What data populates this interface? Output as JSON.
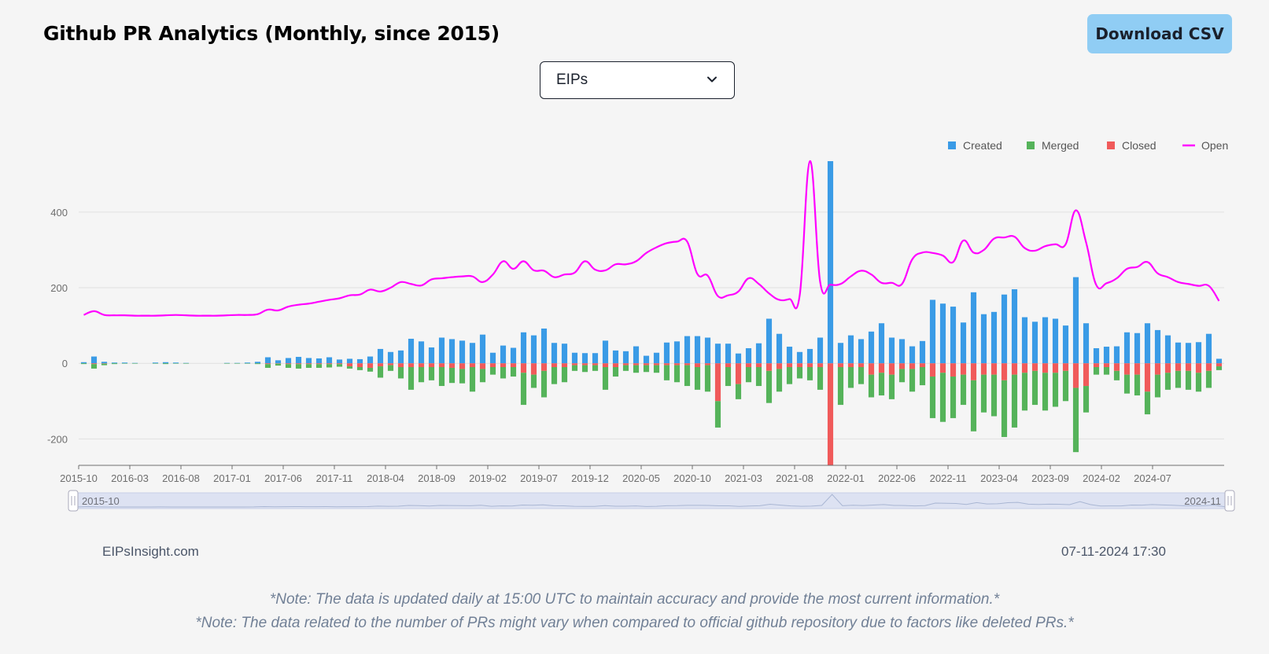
{
  "header": {
    "title": "Github PR Analytics (Monthly, since 2015)",
    "download_label": "Download CSV"
  },
  "selector": {
    "selected": "EIPs"
  },
  "footer": {
    "source": "EIPsInsight.com",
    "timestamp": "07-11-2024 17:30",
    "note1": "*Note: The data is updated daily at 15:00 UTC to maintain accuracy and provide the most current information.*",
    "note2": "*Note: The data related to the number of PRs might vary when compared to official github repository due to factors like deleted PRs.*"
  },
  "chart_data": {
    "type": "bar",
    "title": "",
    "xlabel": "",
    "ylabel": "",
    "ylim": [
      -270,
      535
    ],
    "yticks": [
      400,
      200,
      0,
      -200
    ],
    "legend": [
      "Created",
      "Merged",
      "Closed",
      "Open"
    ],
    "legend_position": "top-right",
    "colors": {
      "Created": "#3a9be6",
      "Merged": "#55b35a",
      "Closed": "#f05a5a",
      "Open": "#ff00ff"
    },
    "x_tick_labels": [
      "2015-10",
      "2016-03",
      "2016-08",
      "2017-01",
      "2017-06",
      "2017-11",
      "2018-04",
      "2018-09",
      "2019-02",
      "2019-07",
      "2019-12",
      "2020-05",
      "2020-10",
      "2021-03",
      "2021-08",
      "2022-01",
      "2022-06",
      "2022-11",
      "2023-04",
      "2023-09",
      "2024-02",
      "2024-07"
    ],
    "start_month": "2015-10",
    "range_slider": {
      "start_label": "2015-10",
      "end_label": "2024-11"
    },
    "series": [
      {
        "name": "Created",
        "values": [
          3,
          18,
          4,
          2,
          2,
          1,
          0,
          2,
          3,
          2,
          1,
          0,
          0,
          0,
          1,
          1,
          2,
          4,
          16,
          8,
          14,
          17,
          14,
          13,
          16,
          10,
          12,
          11,
          18,
          38,
          30,
          34,
          65,
          58,
          42,
          68,
          64,
          60,
          54,
          76,
          28,
          47,
          41,
          82,
          74,
          92,
          54,
          52,
          28,
          27,
          27,
          60,
          34,
          32,
          45,
          20,
          28,
          55,
          58,
          72,
          72,
          68,
          52,
          52,
          26,
          40,
          53,
          118,
          78,
          44,
          30,
          38,
          68,
          535,
          54,
          74,
          64,
          84,
          106,
          68,
          64,
          45,
          59,
          168,
          158,
          150,
          108,
          188,
          130,
          136,
          182,
          196,
          122,
          110,
          122,
          118,
          100,
          228,
          106,
          40,
          44,
          45,
          82,
          80,
          106,
          88,
          74,
          55,
          54,
          56,
          78,
          12
        ]
      },
      {
        "name": "Merged",
        "values": [
          2,
          12,
          4,
          2,
          1,
          1,
          0,
          1,
          2,
          1,
          1,
          0,
          0,
          0,
          1,
          1,
          1,
          2,
          10,
          5,
          10,
          12,
          10,
          10,
          9,
          7,
          6,
          8,
          10,
          30,
          15,
          30,
          60,
          40,
          35,
          50,
          40,
          38,
          65,
          35,
          20,
          30,
          25,
          85,
          35,
          70,
          45,
          40,
          15,
          18,
          15,
          60,
          25,
          15,
          20,
          18,
          20,
          40,
          45,
          55,
          60,
          70,
          70,
          50,
          40,
          40,
          50,
          85,
          60,
          45,
          30,
          35,
          60,
          0,
          100,
          55,
          45,
          60,
          60,
          65,
          35,
          60,
          48,
          110,
          130,
          110,
          80,
          135,
          100,
          110,
          150,
          140,
          100,
          90,
          100,
          90,
          80,
          170,
          70,
          20,
          20,
          25,
          50,
          55,
          60,
          60,
          45,
          45,
          50,
          50,
          45,
          10
        ]
      },
      {
        "name": "Closed",
        "values": [
          0,
          2,
          1,
          0,
          0,
          0,
          0,
          0,
          0,
          0,
          0,
          0,
          0,
          0,
          0,
          0,
          0,
          0,
          2,
          1,
          2,
          2,
          2,
          2,
          2,
          2,
          8,
          10,
          12,
          8,
          5,
          10,
          10,
          10,
          10,
          10,
          12,
          15,
          10,
          15,
          10,
          10,
          10,
          25,
          30,
          20,
          10,
          10,
          5,
          5,
          5,
          10,
          10,
          5,
          5,
          5,
          5,
          5,
          5,
          5,
          10,
          5,
          100,
          10,
          55,
          10,
          10,
          20,
          15,
          10,
          10,
          10,
          10,
          270,
          10,
          10,
          10,
          30,
          25,
          30,
          15,
          15,
          10,
          35,
          25,
          35,
          30,
          45,
          30,
          30,
          45,
          30,
          25,
          20,
          25,
          25,
          20,
          65,
          60,
          10,
          10,
          20,
          30,
          30,
          75,
          30,
          25,
          20,
          20,
          25,
          20,
          8
        ]
      },
      {
        "name": "Open",
        "values": [
          128,
          138,
          128,
          127,
          127,
          126,
          126,
          126,
          127,
          128,
          127,
          126,
          126,
          126,
          127,
          128,
          128,
          130,
          142,
          140,
          150,
          155,
          158,
          163,
          168,
          172,
          180,
          182,
          195,
          190,
          200,
          215,
          210,
          206,
          222,
          225,
          228,
          230,
          230,
          215,
          235,
          270,
          250,
          270,
          246,
          245,
          228,
          235,
          240,
          270,
          248,
          246,
          262,
          262,
          270,
          292,
          307,
          318,
          322,
          322,
          236,
          232,
          178,
          180,
          190,
          225,
          210,
          185,
          168,
          170,
          180,
          535,
          215,
          208,
          210,
          230,
          245,
          235,
          213,
          213,
          210,
          275,
          293,
          292,
          285,
          268,
          325,
          293,
          300,
          330,
          333,
          335,
          305,
          298,
          310,
          315,
          315,
          405,
          320,
          207,
          212,
          225,
          250,
          255,
          268,
          238,
          228,
          215,
          210,
          205,
          205,
          165
        ]
      }
    ]
  }
}
